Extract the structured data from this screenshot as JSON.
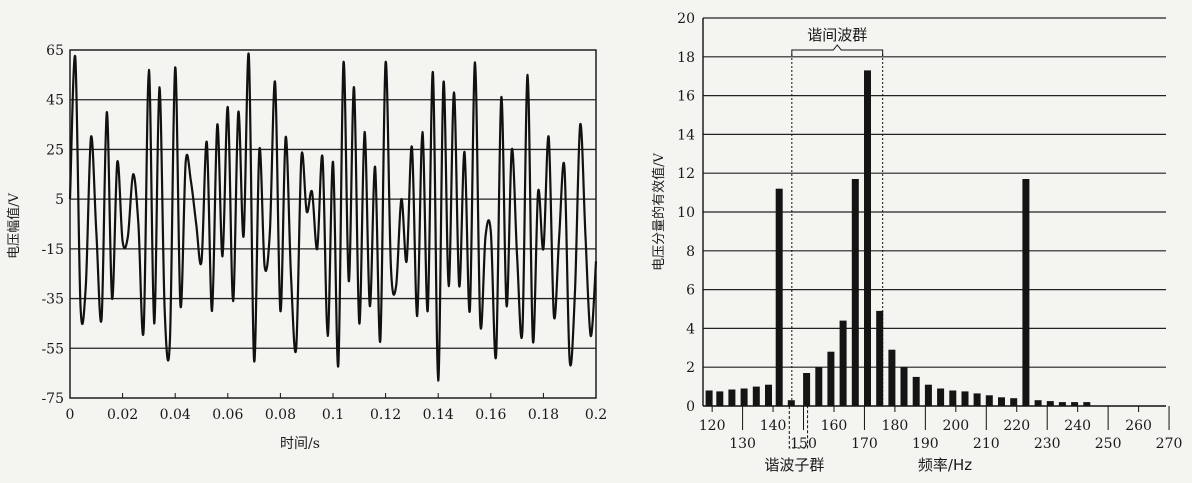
{
  "chart_data": [
    {
      "type": "line",
      "title": "",
      "xlabel": "时间/s",
      "ylabel": "电压幅值/V",
      "xlim": [
        0,
        0.2
      ],
      "ylim": [
        -75,
        65
      ],
      "x_ticks": [
        0,
        0.02,
        0.04,
        0.06,
        0.08,
        0.1,
        0.12,
        0.14,
        0.16,
        0.18,
        0.2
      ],
      "x_tick_labels": [
        "0",
        "0.02",
        "0.04",
        "0.06",
        "0.08",
        "0.1",
        "0.12",
        "0.14",
        "0.16",
        "0.18",
        "0.2"
      ],
      "y_ticks": [
        65,
        45,
        25,
        5,
        -15,
        -35,
        -55,
        -75
      ],
      "y_tick_labels": [
        "65",
        "45",
        "25",
        "5",
        "-15",
        "-35",
        "-55",
        "-75"
      ],
      "grid": "horizontal",
      "series": [
        {
          "x": [
            0,
            0.002,
            0.004,
            0.006,
            0.008,
            0.01,
            0.012,
            0.014,
            0.016,
            0.018,
            0.02,
            0.022,
            0.024,
            0.026,
            0.028,
            0.03,
            0.032,
            0.034,
            0.036,
            0.038,
            0.04,
            0.042,
            0.044,
            0.046,
            0.048,
            0.05,
            0.052,
            0.054,
            0.056,
            0.058,
            0.06,
            0.062,
            0.064,
            0.066,
            0.068,
            0.07,
            0.072,
            0.074,
            0.076,
            0.078,
            0.08,
            0.082,
            0.084,
            0.086,
            0.088,
            0.09,
            0.092,
            0.094,
            0.096,
            0.098,
            0.1,
            0.102,
            0.104,
            0.106,
            0.108,
            0.11,
            0.112,
            0.114,
            0.116,
            0.118,
            0.12,
            0.122,
            0.124,
            0.126,
            0.128,
            0.13,
            0.132,
            0.134,
            0.136,
            0.138,
            0.14,
            0.142,
            0.144,
            0.146,
            0.148,
            0.15,
            0.152,
            0.154,
            0.156,
            0.158,
            0.16,
            0.162,
            0.164,
            0.166,
            0.168,
            0.17,
            0.172,
            0.174,
            0.176,
            0.178,
            0.18,
            0.182,
            0.184,
            0.186,
            0.188,
            0.19,
            0.192,
            0.194,
            0.196,
            0.198,
            0.2
          ],
          "values": [
            5,
            62,
            -38,
            -30,
            30,
            -8,
            -43,
            40,
            -35,
            20,
            -12,
            -10,
            15,
            -5,
            -48,
            57,
            -45,
            50,
            -40,
            -52,
            58,
            -38,
            20,
            12,
            -5,
            -20,
            28,
            -40,
            35,
            -18,
            42,
            -36,
            40,
            -10,
            63,
            -60,
            25,
            -22,
            -8,
            52,
            -40,
            30,
            -25,
            -55,
            22,
            0,
            8,
            -15,
            22,
            -50,
            20,
            -62,
            60,
            -28,
            50,
            -45,
            32,
            -38,
            18,
            -52,
            60,
            -22,
            -30,
            5,
            -20,
            26,
            -42,
            32,
            -40,
            56,
            -68,
            52,
            -30,
            48,
            -30,
            24,
            -40,
            60,
            -45,
            -10,
            -8,
            -58,
            46,
            -38,
            25,
            -18,
            -48,
            55,
            -52,
            8,
            -15,
            30,
            -42,
            -10,
            18,
            -60,
            -32,
            35,
            -10,
            -50,
            -20
          ]
        }
      ]
    },
    {
      "type": "bar",
      "title": "",
      "xlabel": "频率/Hz",
      "ylabel": "电压分量的有效值/V",
      "xlim": [
        117,
        269
      ],
      "ylim": [
        0,
        20
      ],
      "x_ticks": [
        120,
        130,
        140,
        150,
        160,
        170,
        180,
        190,
        200,
        210,
        220,
        230,
        240,
        250,
        260,
        270
      ],
      "x_tick_labels": [
        "120",
        "130",
        "140",
        "150",
        "160",
        "170",
        "180",
        "190",
        "200",
        "210",
        "220",
        "230",
        "240",
        "250",
        "260",
        "270"
      ],
      "y_ticks": [
        0,
        2,
        4,
        6,
        8,
        10,
        12,
        14,
        16,
        18,
        20
      ],
      "y_tick_labels": [
        "0",
        "2",
        "4",
        "6",
        "8",
        "10",
        "12",
        "14",
        "16",
        "18",
        "20"
      ],
      "grid": "horizontal",
      "x": [
        119,
        122.5,
        126.5,
        130.5,
        134.5,
        138.5,
        142,
        146,
        151,
        155,
        159,
        163,
        167,
        171,
        175,
        179,
        183,
        187,
        191,
        195,
        199,
        203,
        207,
        211,
        215,
        219,
        223,
        227,
        231,
        235,
        239,
        243,
        247,
        251,
        255,
        259,
        263
      ],
      "values": [
        0.8,
        0.75,
        0.85,
        0.9,
        1.0,
        1.1,
        11.2,
        0.3,
        1.7,
        2.0,
        2.8,
        4.4,
        11.7,
        17.3,
        4.9,
        2.9,
        2.0,
        1.5,
        1.1,
        0.9,
        0.8,
        0.75,
        0.65,
        0.55,
        0.45,
        0.4,
        11.7,
        0.3,
        0.25,
        0.2,
        0.2,
        0.2,
        0,
        0,
        0,
        0,
        0
      ],
      "annotations": [
        {
          "text": "谐间波群",
          "x_range": [
            146,
            175
          ]
        },
        {
          "text": "谐波子群",
          "x_range": [
            145,
            151
          ]
        }
      ]
    }
  ]
}
